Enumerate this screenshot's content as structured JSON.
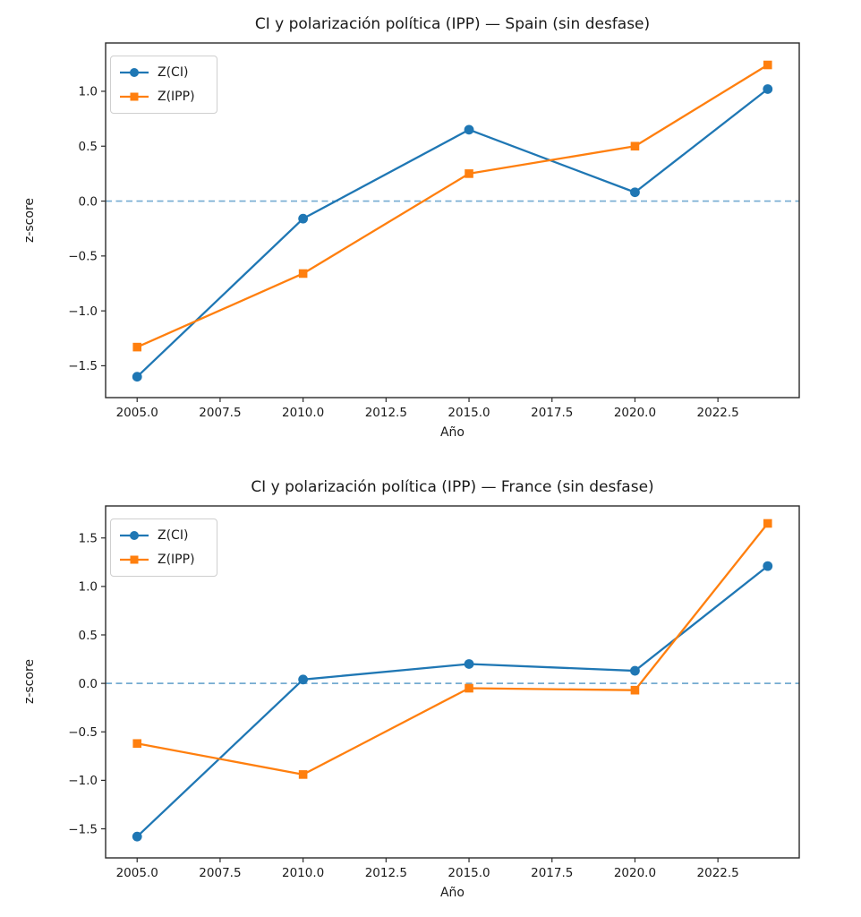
{
  "chart_data": [
    {
      "type": "line",
      "title": "CI y polarización política (IPP) — Spain (sin desfase)",
      "xlabel": "Año",
      "ylabel": "z-score",
      "x": [
        2005,
        2010,
        2015,
        2020,
        2024
      ],
      "series": [
        {
          "name": "Z(CI)",
          "color": "#1f77b4",
          "marker": "circle",
          "values": [
            -1.6,
            -0.16,
            0.65,
            0.08,
            1.02
          ]
        },
        {
          "name": "Z(IPP)",
          "color": "#ff7f0e",
          "marker": "square",
          "values": [
            -1.33,
            -0.66,
            0.25,
            0.5,
            1.24
          ]
        }
      ],
      "xlim": [
        2004.05,
        2024.95
      ],
      "ylim": [
        -1.79,
        1.44
      ],
      "xtick_values": [
        2005,
        2007.5,
        2010,
        2012.5,
        2015,
        2017.5,
        2020,
        2022.5
      ],
      "xtick_labels": [
        "2005.0",
        "2007.5",
        "2010.0",
        "2012.5",
        "2015.0",
        "2017.5",
        "2020.0",
        "2022.5"
      ],
      "ytick_values": [
        1.0,
        0.5,
        0.0,
        -0.5,
        -1.0,
        -1.5
      ],
      "ytick_labels": [
        "1.0",
        "0.5",
        "0.0",
        "−0.5",
        "−1.0",
        "−1.5"
      ],
      "zero_line": {
        "value": 0,
        "style": "dashed",
        "color": "#1f77b4",
        "alpha": 0.62
      },
      "legend": {
        "location": "upper left",
        "entries": [
          "Z(CI)",
          "Z(IPP)"
        ]
      },
      "grid": false
    },
    {
      "type": "line",
      "title": "CI y polarización política (IPP) — France (sin desfase)",
      "xlabel": "Año",
      "ylabel": "z-score",
      "x": [
        2005,
        2010,
        2015,
        2020,
        2024
      ],
      "series": [
        {
          "name": "Z(CI)",
          "color": "#1f77b4",
          "marker": "circle",
          "values": [
            -1.58,
            0.04,
            0.2,
            0.13,
            1.21
          ]
        },
        {
          "name": "Z(IPP)",
          "color": "#ff7f0e",
          "marker": "square",
          "values": [
            -0.62,
            -0.94,
            -0.05,
            -0.07,
            1.65
          ]
        }
      ],
      "xlim": [
        2004.05,
        2024.95
      ],
      "ylim": [
        -1.8,
        1.83
      ],
      "xtick_values": [
        2005,
        2007.5,
        2010,
        2012.5,
        2015,
        2017.5,
        2020,
        2022.5
      ],
      "xtick_labels": [
        "2005.0",
        "2007.5",
        "2010.0",
        "2012.5",
        "2015.0",
        "2017.5",
        "2020.0",
        "2022.5"
      ],
      "ytick_values": [
        1.5,
        1.0,
        0.5,
        0.0,
        -0.5,
        -1.0,
        -1.5
      ],
      "ytick_labels": [
        "1.5",
        "1.0",
        "0.5",
        "0.0",
        "−0.5",
        "−1.0",
        "−1.5"
      ],
      "zero_line": {
        "value": 0,
        "style": "dashed",
        "color": "#1f77b4",
        "alpha": 0.62
      },
      "legend": {
        "location": "upper left",
        "entries": [
          "Z(CI)",
          "Z(IPP)"
        ]
      },
      "grid": false
    }
  ],
  "colors": {
    "series_ci": "#1f77b4",
    "series_ipp": "#ff7f0e",
    "axes_spine": "#2b2b2b",
    "text": "#1a1a1a",
    "legend_border": "#cfcfcf"
  }
}
